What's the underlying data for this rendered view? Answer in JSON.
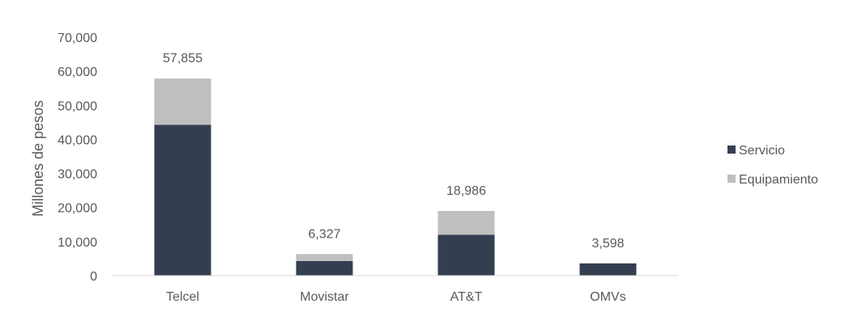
{
  "chart_data": {
    "type": "bar",
    "stacked": true,
    "categories": [
      "Telcel",
      "Movistar",
      "AT&T",
      "OMVs"
    ],
    "series": [
      {
        "name": "Servicio",
        "values": [
          44300,
          4300,
          12000,
          3598
        ],
        "color": "#333f50"
      },
      {
        "name": "Equipamiento",
        "values": [
          13555,
          2027,
          6986,
          0
        ],
        "color": "#bfbfbf"
      }
    ],
    "totals": [
      "57,855",
      "6,327",
      "18,986",
      "3,598"
    ],
    "ylabel": "Millones de pesos",
    "xlabel": "",
    "ylim": [
      0,
      70000
    ],
    "yticks": [
      "0",
      "10,000",
      "20,000",
      "30,000",
      "40,000",
      "50,000",
      "60,000",
      "70,000"
    ],
    "grid": false,
    "legend": "right"
  }
}
